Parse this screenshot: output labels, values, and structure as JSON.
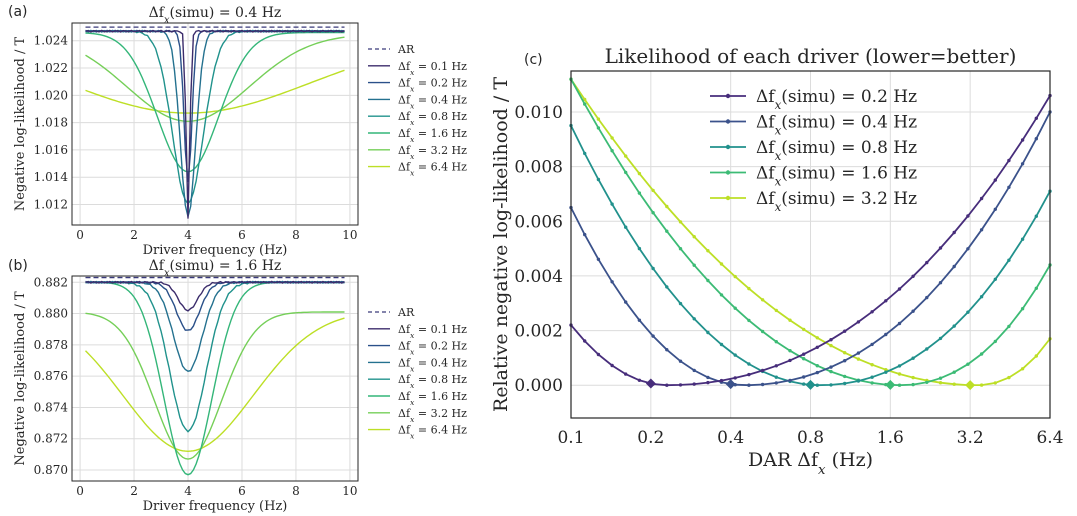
{
  "chart_data": [
    {
      "panel": "(a)",
      "type": "line",
      "title": "Δf_x(simu) = 0.4 Hz",
      "xlabel": "Driver frequency (Hz)",
      "ylabel": "Negative log-likelihood / T",
      "xlim": [
        -0.3,
        10.3
      ],
      "ylim": [
        1.0105,
        1.0253
      ],
      "xticks": [
        0,
        2,
        4,
        6,
        8,
        10
      ],
      "yticks": [
        1.012,
        1.014,
        1.016,
        1.018,
        1.02,
        1.022,
        1.024
      ],
      "ytick_labels": [
        "1.012",
        "1.014",
        "1.016",
        "1.018",
        "1.020",
        "1.022",
        "1.024"
      ],
      "grid": true,
      "legend_position": "right outside",
      "ar_label": "AR",
      "ar_value": 1.025,
      "x_range": [
        0.2,
        9.8
      ],
      "series": [
        {
          "name": "Δf_x = 0.1 Hz",
          "min_x": 4.0,
          "width": 0.1,
          "base": 1.0247,
          "depth": 0.0137
        },
        {
          "name": "Δf_x = 0.2 Hz",
          "min_x": 4.0,
          "width": 0.2,
          "base": 1.0247,
          "depth": 0.0111
        },
        {
          "name": "Δf_x = 0.4 Hz",
          "min_x": 4.0,
          "width": 0.4,
          "base": 1.0247,
          "depth": 0.0136
        },
        {
          "name": "Δf_x = 0.8 Hz",
          "min_x": 4.0,
          "width": 0.8,
          "base": 1.0247,
          "depth": 0.0126
        },
        {
          "name": "Δf_x = 1.6 Hz",
          "min_x": 4.0,
          "width": 1.6,
          "base": 1.0246,
          "depth": 0.0102
        },
        {
          "name": "Δf_x = 3.2 Hz",
          "min_x": 4.0,
          "width": 3.2,
          "base": 1.0245,
          "depth": 0.0064
        },
        {
          "name": "Δf_x = 6.4 Hz",
          "min_x": 4.0,
          "width": 6.4,
          "base": 1.0243,
          "depth": 0.0056
        }
      ],
      "colors": [
        "#3b2c6b",
        "#2a5089",
        "#24718f",
        "#20928c",
        "#34b679",
        "#75cf58",
        "#bddf26"
      ],
      "ar_color": "#3a3a7a"
    },
    {
      "panel": "(b)",
      "type": "line",
      "title": "Δf_x(simu) = 1.6 Hz",
      "xlabel": "Driver frequency (Hz)",
      "ylabel": "Negative log-likelihood / T",
      "xlim": [
        -0.3,
        10.3
      ],
      "ylim": [
        0.8693,
        0.8824
      ],
      "xticks": [
        0,
        2,
        4,
        6,
        8,
        10
      ],
      "yticks": [
        0.87,
        0.872,
        0.874,
        0.876,
        0.878,
        0.88,
        0.882
      ],
      "ytick_labels": [
        "0.870",
        "0.872",
        "0.874",
        "0.876",
        "0.878",
        "0.880",
        "0.882"
      ],
      "grid": true,
      "legend_position": "right outside",
      "ar_label": "AR",
      "ar_value": 0.8823,
      "x_range": [
        0.2,
        9.8
      ],
      "series": [
        {
          "name": "Δf_x = 0.1 Hz",
          "min_x": 4.0,
          "width": 0.5,
          "base": 0.882,
          "depth": 0.0018
        },
        {
          "name": "Δf_x = 0.2 Hz",
          "min_x": 4.0,
          "width": 0.6,
          "base": 0.882,
          "depth": 0.0031
        },
        {
          "name": "Δf_x = 0.4 Hz",
          "min_x": 4.0,
          "width": 0.75,
          "base": 0.882,
          "depth": 0.0057
        },
        {
          "name": "Δf_x = 0.8 Hz",
          "min_x": 4.0,
          "width": 0.95,
          "base": 0.882,
          "depth": 0.0095
        },
        {
          "name": "Δf_x = 1.6 Hz",
          "min_x": 4.0,
          "width": 1.25,
          "base": 0.882,
          "depth": 0.0123
        },
        {
          "name": "Δf_x = 3.2 Hz",
          "min_x": 4.0,
          "width": 1.75,
          "base": 0.8801,
          "depth": 0.0094
        },
        {
          "name": "Δf_x = 6.4 Hz",
          "min_x": 4.0,
          "width": 3.4,
          "base": 0.8802,
          "depth": 0.009
        }
      ],
      "colors": [
        "#3b2c6b",
        "#2a5089",
        "#24718f",
        "#20928c",
        "#34b679",
        "#75cf58",
        "#bddf26"
      ],
      "ar_color": "#3a3a7a"
    },
    {
      "panel": "(c)",
      "type": "line",
      "title": "Likelihood of each driver (lower=better)",
      "xlabel": "DAR Δf_x (Hz)",
      "ylabel": "Relative negative log-likelihood / T",
      "xscale": "log2",
      "xlim": [
        0.1,
        6.4
      ],
      "ylim": [
        -0.0012,
        0.0115
      ],
      "xticks": [
        0.1,
        0.2,
        0.4,
        0.8,
        1.6,
        3.2,
        6.4
      ],
      "xtick_labels": [
        "0.1",
        "0.2",
        "0.4",
        "0.8",
        "1.6",
        "3.2",
        "6.4"
      ],
      "yticks": [
        0.0,
        0.002,
        0.004,
        0.006,
        0.008,
        0.01
      ],
      "ytick_labels": [
        "0.000",
        "0.002",
        "0.004",
        "0.006",
        "0.008",
        "0.010"
      ],
      "grid": true,
      "legend_position": "upper center",
      "markers": "small dots, diamond at true value",
      "n_points": 36,
      "series": [
        {
          "name": "Δf_x(simu) = 0.2 Hz",
          "true_x": 0.2,
          "min_x": 0.23,
          "x_left": 0.1,
          "y_left": 0.0022,
          "x_right": 6.4,
          "y_right": 0.0106
        },
        {
          "name": "Δf_x(simu) = 0.4 Hz",
          "true_x": 0.4,
          "min_x": 0.45,
          "x_left": 0.1,
          "y_left": 0.0065,
          "x_right": 6.4,
          "y_right": 0.01
        },
        {
          "name": "Δf_x(simu) = 0.8 Hz",
          "true_x": 0.8,
          "min_x": 0.87,
          "x_left": 0.1,
          "y_left": 0.0095,
          "x_right": 6.4,
          "y_right": 0.0071
        },
        {
          "name": "Δf_x(simu) = 1.6 Hz",
          "true_x": 1.6,
          "min_x": 1.75,
          "x_left": 0.1,
          "y_left": 0.0112,
          "x_right": 6.4,
          "y_right": 0.0044
        },
        {
          "name": "Δf_x(simu) = 3.2 Hz",
          "true_x": 3.2,
          "min_x": 3.4,
          "x_left": 0.1,
          "y_left": 0.0112,
          "x_right": 6.4,
          "y_right": 0.0017
        }
      ],
      "colors": [
        "#472d7b",
        "#3b528b",
        "#21918c",
        "#3cbb75",
        "#bddf26"
      ]
    }
  ]
}
